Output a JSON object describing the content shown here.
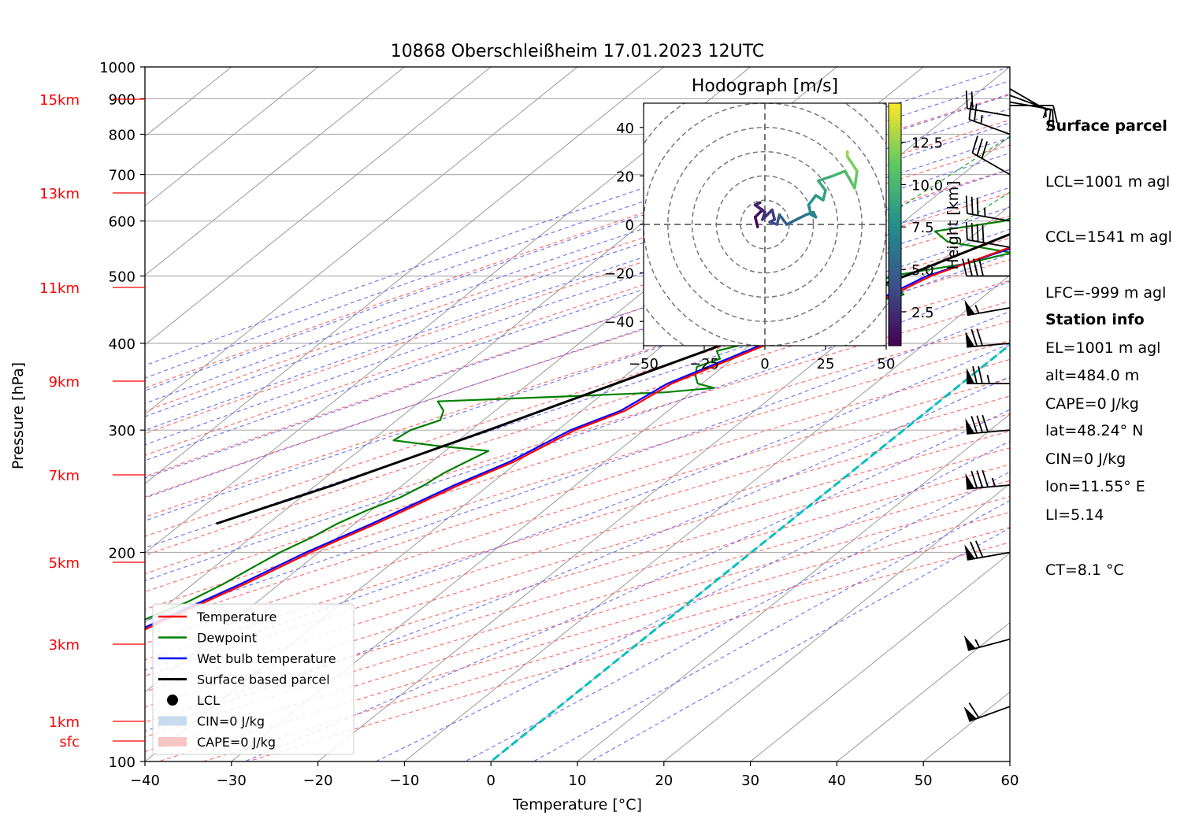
{
  "chart_data": {
    "type": "skew-t",
    "title": "10868 Oberschleißheim 17.01.2023 12UTC",
    "xlabel": "Temperature [°C]",
    "ylabel": "Pressure [hPa]",
    "xlim": [
      -40,
      60
    ],
    "ylim": [
      1000,
      100
    ],
    "x_ticks": [
      "−40",
      "−30",
      "−20",
      "−10",
      "0",
      "10",
      "20",
      "30",
      "40",
      "50",
      "60"
    ],
    "y_ticks": [
      "100",
      "200",
      "300",
      "400",
      "500",
      "600",
      "700",
      "800",
      "900",
      "1000"
    ],
    "height_labels": [
      "15km",
      "13km",
      "11km",
      "9km",
      "7km",
      "5km",
      "3km",
      "1km",
      "sfc"
    ],
    "grid": true,
    "temperature": {
      "p": [
        933,
        900,
        850,
        800,
        750,
        700,
        650,
        600,
        550,
        500,
        450,
        400,
        350,
        320,
        300,
        270,
        250,
        220,
        200,
        180,
        160,
        150,
        140,
        130
      ],
      "t": [
        2.2,
        -0.3,
        -1.0,
        0.6,
        -3.5,
        -6.0,
        -8.0,
        -10.5,
        -14.0,
        -19.0,
        -22.0,
        -28.0,
        -33.5,
        -35.0,
        -38.0,
        -40.5,
        -43.5,
        -47.5,
        -51.0,
        -54.0,
        -58.0,
        -60.0,
        -62.5,
        -64.0
      ]
    },
    "dewpoint": {
      "p": [
        933,
        910,
        880,
        850,
        820,
        800,
        770,
        750,
        730,
        700,
        680,
        660,
        640,
        630,
        600,
        580,
        560,
        540,
        520,
        510,
        500,
        490,
        480,
        470,
        460,
        450,
        440,
        430,
        420,
        410,
        400,
        390,
        380,
        370,
        360,
        350,
        345,
        340,
        335,
        330,
        320,
        310,
        300,
        290,
        285,
        280,
        270,
        260,
        250,
        240,
        230,
        220,
        210,
        200,
        190,
        180,
        170,
        160,
        150,
        140,
        135
      ],
      "td": [
        -3.0,
        -3.5,
        -2.5,
        -3.0,
        -3.5,
        -2.0,
        -4.0,
        -10.0,
        -9.0,
        -10.5,
        -12.5,
        -13.5,
        -15.0,
        -16.5,
        -18.5,
        -25.0,
        -22.0,
        -13.0,
        -17.0,
        -20.5,
        -23.5,
        -24.5,
        -21.0,
        -19.5,
        -21.5,
        -23.0,
        -24.0,
        -26.0,
        -26.5,
        -27.0,
        -30.5,
        -33.0,
        -31.5,
        -33.0,
        -32.0,
        -30.5,
        -28.0,
        -33.0,
        -45.0,
        -58.0,
        -56.0,
        -55.0,
        -57.0,
        -57.5,
        -52.0,
        -45.0,
        -46.0,
        -47.0,
        -47.5,
        -48.5,
        -50.5,
        -52.0,
        -53.0,
        -54.5,
        -55.5,
        -56.5,
        -58.0,
        -60.5,
        -63.0,
        -66.0,
        -67.5
      ]
    },
    "wet_bulb": {
      "p": [
        933,
        900,
        850,
        800,
        750,
        700,
        650,
        600,
        550,
        500,
        450,
        400,
        350,
        320,
        300,
        270,
        250,
        220,
        200,
        180,
        160,
        150,
        140,
        130
      ],
      "t": [
        1.2,
        -1.0,
        -2.0,
        -3.0,
        -4.5,
        -7.0,
        -9.0,
        -11.0,
        -13.5,
        -19.5,
        -22.5,
        -28.5,
        -34.0,
        -35.5,
        -38.5,
        -41.0,
        -44.0,
        -48.0,
        -51.5,
        -54.5,
        -58.5,
        -60.5,
        -63.0,
        -64.5
      ]
    },
    "parcel": {
      "p": [
        933,
        826,
        700,
        600,
        500,
        400,
        300,
        250,
        220
      ],
      "t": [
        5.5,
        -0.5,
        -7.5,
        -14.0,
        -22.0,
        -33.0,
        -48.0,
        -58.0,
        -66.0
      ]
    },
    "lcl": {
      "p": 826,
      "t": -0.5
    },
    "legend": [
      "Temperature",
      "Dewpoint",
      "Wet bulb temperature",
      "Surface based parcel",
      "LCL",
      "CIN=0 J/kg",
      "CAPE=0 J/kg"
    ],
    "legend_position": "lower-left",
    "series_colors": {
      "temperature": "#ff0000",
      "dewpoint": "#008000",
      "wet_bulb": "#0000ff",
      "parcel": "#000000",
      "zero_isotherm": "#00c0c0"
    },
    "hodograph": {
      "title": "Hodograph [m/s]",
      "xlim": [
        -50,
        50
      ],
      "ylim": [
        -50,
        50
      ],
      "x_ticks": [
        "−50",
        "−25",
        "0",
        "25",
        "50"
      ],
      "y_ticks": [
        "40",
        "20",
        "0",
        "−20",
        "−40"
      ],
      "colorbar_label": "Height [km]",
      "colorbar_ticks": [
        "2.5",
        "5.0",
        "7.5",
        "10.0",
        "12.5"
      ],
      "colorbar_range": [
        0.5,
        14.8
      ],
      "u": [
        -3,
        -4,
        -1,
        -4,
        -2,
        -4,
        0,
        -1,
        3,
        4,
        2,
        5,
        6,
        9,
        13,
        17,
        20,
        21,
        19,
        18,
        21,
        24,
        25,
        22,
        28,
        33,
        37,
        38,
        34,
        34
      ],
      "v": [
        -1,
        3,
        6,
        8,
        9,
        8,
        5,
        2,
        6,
        2,
        1,
        0,
        4,
        0,
        2,
        4,
        5,
        3,
        4,
        8,
        12,
        10,
        14,
        18,
        20,
        22,
        15,
        22,
        28,
        30
      ],
      "h": [
        0.5,
        0.8,
        1.1,
        1.5,
        1.8,
        2.1,
        2.4,
        2.7,
        3.0,
        3.4,
        3.8,
        4.2,
        4.7,
        5.2,
        5.7,
        6.2,
        6.6,
        7.0,
        7.4,
        7.8,
        8.2,
        8.6,
        9.0,
        9.4,
        10.0,
        10.6,
        11.2,
        11.8,
        12.6,
        13.3
      ]
    },
    "wind_barbs": {
      "p": [
        930,
        910,
        890,
        880,
        850,
        800,
        700,
        600,
        550,
        500,
        450,
        400,
        350,
        300,
        250,
        200,
        150,
        120
      ],
      "speed_kt": [
        5,
        10,
        15,
        10,
        20,
        25,
        30,
        35,
        40,
        40,
        55,
        70,
        75,
        80,
        85,
        70,
        55,
        60
      ],
      "dir_deg": [
        120,
        110,
        100,
        90,
        280,
        290,
        300,
        280,
        280,
        270,
        260,
        265,
        270,
        265,
        265,
        260,
        255,
        250
      ]
    }
  },
  "surface_parcel": {
    "header": "Surface parcel",
    "lines": [
      "LCL=1001 m agl",
      "CCL=1541 m agl",
      "LFC=-999 m agl",
      "EL=1001 m agl",
      "CAPE=0 J/kg",
      "CIN=0 J/kg",
      "LI=5.14",
      "CT=8.1 °C"
    ]
  },
  "station_info": {
    "header": "Station info",
    "lines": [
      "alt=484.0 m",
      "lat=48.24° N",
      "lon=11.55° E"
    ]
  }
}
